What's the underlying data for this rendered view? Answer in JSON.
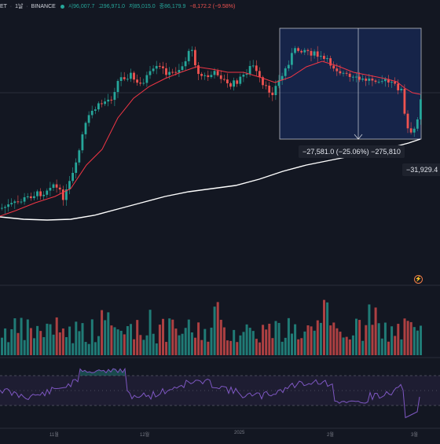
{
  "header": {
    "symbol": "ET",
    "interval": "1날",
    "exchange": "BINANCE",
    "open": "시96,007.7",
    "high": "고96,971.0",
    "low": "저85,015.0",
    "close": "종86,179.9",
    "change": "−8,172.2 (−9.58%)"
  },
  "measure": {
    "label": "−27,581.0 (−25.06%) −275,810"
  },
  "price_tag": "−31,929.4",
  "x_labels": [
    "11월",
    "12월",
    "2025",
    "2월",
    "3월"
  ],
  "colors": {
    "up": "#26a69a",
    "down": "#ef5350",
    "ma_fast": "#f23645",
    "ma_slow": "#ffffff",
    "rsi": "#7e57c2",
    "background": "#131722"
  },
  "icons": [
    "bolt-icon"
  ]
}
